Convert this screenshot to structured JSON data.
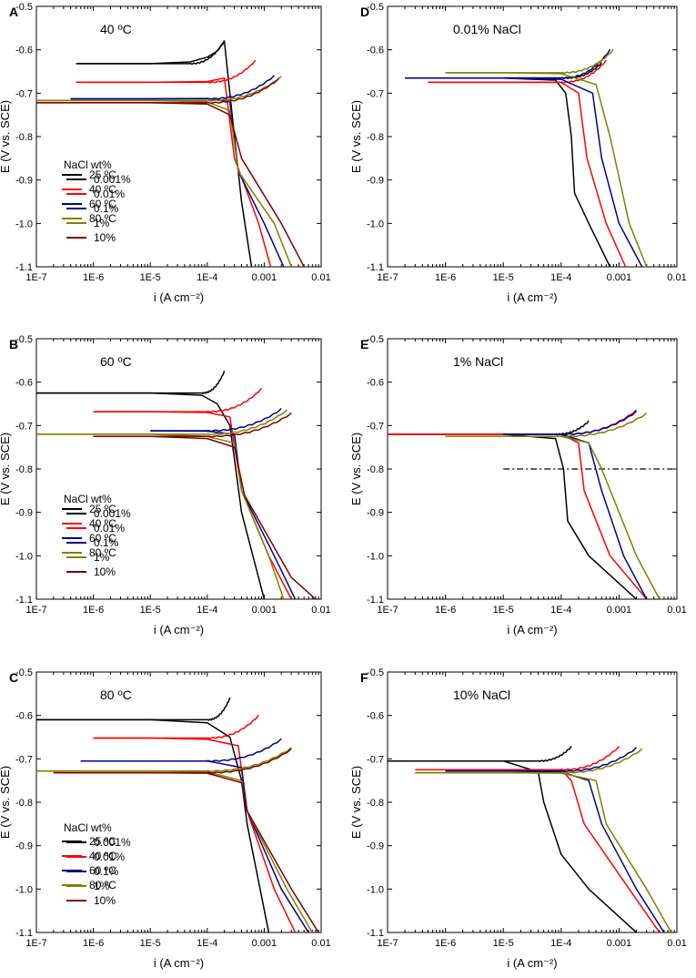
{
  "figure": {
    "x_ticks": [
      "1E-7",
      "1E-6",
      "1E-5",
      "1E-4",
      "0.001",
      "0.01"
    ],
    "y_ticks": [
      "-0.5",
      "-0.6",
      "-0.7",
      "-0.8",
      "-0.9",
      "-1.0",
      "-1.1"
    ],
    "colors": {
      "black": "#000000",
      "red": "#ff0000",
      "blue": "#00008b",
      "olive": "#808000",
      "maroon": "#800000"
    }
  },
  "chart_data": [
    {
      "panel": "A",
      "type": "line",
      "title": "40 ºC",
      "xlabel": "i (A cm⁻²)",
      "ylabel": "E (V vs. SCE)",
      "x_scale": "log",
      "xlim": [
        1e-07,
        0.01
      ],
      "ylim": [
        -1.1,
        -0.5
      ],
      "legend_title": "NaCl wt%",
      "series": [
        {
          "name": "0.001%",
          "color": "#000000",
          "ecorr": -0.632,
          "x": [
            5e-07,
            1e-05,
            5e-05,
            0.0001,
            0.00015,
            0.0002,
            0.0003,
            0.0004,
            0.0006
          ],
          "y": [
            -0.632,
            -0.632,
            -0.628,
            -0.617,
            -0.603,
            -0.58,
            -0.8,
            -0.95,
            -1.1
          ],
          "anodic_end": [
            0.0002,
            -0.58
          ]
        },
        {
          "name": "0.01%",
          "color": "#ff0000",
          "x": [
            5e-07,
            1e-05,
            0.0001,
            0.0002,
            0.0003,
            0.0008,
            0.0013
          ],
          "y": [
            -0.675,
            -0.675,
            -0.673,
            -0.665,
            -0.85,
            -1.0,
            -1.1
          ],
          "anodic_end": [
            0.0007,
            -0.625
          ]
        },
        {
          "name": "0.1%",
          "color": "#00008b",
          "x": [
            4e-07,
            1e-05,
            0.0001,
            0.00025,
            0.00035,
            0.001,
            0.0022
          ],
          "y": [
            -0.713,
            -0.713,
            -0.712,
            -0.72,
            -0.88,
            -1.0,
            -1.1
          ],
          "anodic_end": [
            0.0015,
            -0.66
          ]
        },
        {
          "name": "1%",
          "color": "#808000",
          "x": [
            1e-07,
            1e-05,
            0.0001,
            0.00025,
            0.00035,
            0.0015,
            0.003
          ],
          "y": [
            -0.717,
            -0.717,
            -0.72,
            -0.74,
            -0.88,
            -1.0,
            -1.1
          ],
          "anodic_end": [
            0.002,
            -0.662
          ]
        },
        {
          "name": "10%",
          "color": "#800000",
          "x": [
            1e-07,
            1e-05,
            0.0001,
            0.00025,
            0.0004,
            0.002,
            0.005
          ],
          "y": [
            -0.722,
            -0.722,
            -0.725,
            -0.75,
            -0.85,
            -1.0,
            -1.1
          ],
          "anodic_end": [
            0.0018,
            -0.667
          ]
        }
      ]
    },
    {
      "panel": "B",
      "type": "line",
      "title": "60 ºC",
      "xlabel": "i (A cm⁻²)",
      "ylabel": "E (V vs. SCE)",
      "x_scale": "log",
      "xlim": [
        1e-07,
        0.01
      ],
      "ylim": [
        -1.1,
        -0.5
      ],
      "legend_title": "NaCl wt%",
      "series": [
        {
          "name": "0.001%",
          "color": "#000000",
          "x": [
            1e-07,
            1e-05,
            8e-05,
            0.00015,
            0.00025,
            0.0004,
            0.001
          ],
          "y": [
            -0.625,
            -0.625,
            -0.63,
            -0.65,
            -0.7,
            -0.9,
            -1.1
          ],
          "anodic_end": [
            0.0002,
            -0.575
          ]
        },
        {
          "name": "0.01%",
          "color": "#ff0000",
          "x": [
            1e-06,
            1e-05,
            0.0001,
            0.00025,
            0.0004,
            0.0012,
            0.003
          ],
          "y": [
            -0.668,
            -0.668,
            -0.67,
            -0.68,
            -0.85,
            -1.0,
            -1.1
          ],
          "anodic_end": [
            0.0009,
            -0.615
          ]
        },
        {
          "name": "0.1%",
          "color": "#00008b",
          "x": [
            1e-05,
            0.0001,
            0.0003,
            0.0004,
            0.0015,
            0.0035
          ],
          "y": [
            -0.712,
            -0.713,
            -0.72,
            -0.85,
            -1.0,
            -1.1
          ],
          "anodic_end": [
            0.002,
            -0.662
          ]
        },
        {
          "name": "1%",
          "color": "#808000",
          "x": [
            1e-07,
            1e-05,
            0.0001,
            0.0003,
            0.0004,
            0.0012,
            0.0022
          ],
          "y": [
            -0.72,
            -0.72,
            -0.725,
            -0.74,
            -0.85,
            -1.0,
            -1.1
          ],
          "anodic_end": [
            0.0025,
            -0.665
          ]
        },
        {
          "name": "10%",
          "color": "#800000",
          "x": [
            1e-06,
            1e-05,
            0.0001,
            0.0003,
            0.00045,
            0.003,
            0.008
          ],
          "y": [
            -0.725,
            -0.725,
            -0.73,
            -0.75,
            -0.86,
            -1.05,
            -1.1
          ],
          "anodic_end": [
            0.003,
            -0.672
          ]
        }
      ]
    },
    {
      "panel": "C",
      "type": "line",
      "title": "80 ºC",
      "xlabel": "i (A cm⁻²)",
      "ylabel": "E (V vs. SCE)",
      "x_scale": "log",
      "xlim": [
        1e-07,
        0.01
      ],
      "ylim": [
        -1.1,
        -0.5
      ],
      "legend_title": "NaCl wt%",
      "series": [
        {
          "name": "0.001%",
          "color": "#000000",
          "x": [
            1e-07,
            1e-05,
            0.0001,
            0.00025,
            0.0004,
            0.0005,
            0.0012
          ],
          "y": [
            -0.61,
            -0.61,
            -0.617,
            -0.65,
            -0.75,
            -0.85,
            -1.1
          ],
          "anodic_end": [
            0.00025,
            -0.56
          ]
        },
        {
          "name": "0.01%",
          "color": "#ff0000",
          "x": [
            1e-06,
            1e-05,
            0.0001,
            0.00035,
            0.0005,
            0.0015,
            0.0035
          ],
          "y": [
            -0.652,
            -0.652,
            -0.655,
            -0.67,
            -0.82,
            -1.0,
            -1.1
          ],
          "anodic_end": [
            0.0008,
            -0.6
          ]
        },
        {
          "name": "0.1%",
          "color": "#00008b",
          "x": [
            6e-07,
            1e-05,
            0.0001,
            0.0004,
            0.0005,
            0.002,
            0.006
          ],
          "y": [
            -0.705,
            -0.705,
            -0.705,
            -0.72,
            -0.82,
            -1.0,
            -1.1
          ],
          "anodic_end": [
            0.002,
            -0.655
          ]
        },
        {
          "name": "1%",
          "color": "#808000",
          "x": [
            1e-07,
            1e-05,
            0.0001,
            0.0004,
            0.0005,
            0.0025,
            0.007
          ],
          "y": [
            -0.728,
            -0.728,
            -0.73,
            -0.75,
            -0.82,
            -1.0,
            -1.1
          ],
          "anodic_end": [
            0.003,
            -0.675
          ]
        },
        {
          "name": "10%",
          "color": "#800000",
          "x": [
            2e-07,
            1e-05,
            0.0001,
            0.0004,
            0.0005,
            0.003,
            0.009
          ],
          "y": [
            -0.732,
            -0.732,
            -0.733,
            -0.755,
            -0.82,
            -1.0,
            -1.1
          ],
          "anodic_end": [
            0.003,
            -0.678
          ]
        }
      ]
    },
    {
      "panel": "D",
      "type": "line",
      "title": "0.01% NaCl",
      "xlabel": "i (A cm⁻²)",
      "ylabel": "E (V vs. SCE)",
      "x_scale": "log",
      "xlim": [
        1e-07,
        0.01
      ],
      "ylim": [
        -1.1,
        -0.5
      ],
      "series": [
        {
          "name": "25 ºC",
          "color": "#000000",
          "x": [
            1e-05,
            8e-05,
            0.00012,
            0.00015,
            0.00017,
            0.0003,
            0.0007
          ],
          "y": [
            -0.665,
            -0.67,
            -0.7,
            -0.8,
            -0.93,
            -1.0,
            -1.1
          ],
          "anodic_end": [
            0.0005,
            -0.63
          ]
        },
        {
          "name": "40 ºC",
          "color": "#ff0000",
          "x": [
            5e-07,
            1e-05,
            0.0001,
            0.0002,
            0.00028,
            0.0006,
            0.0013
          ],
          "y": [
            -0.675,
            -0.675,
            -0.675,
            -0.7,
            -0.85,
            -1.0,
            -1.1
          ],
          "anodic_end": [
            0.0006,
            -0.625
          ]
        },
        {
          "name": "60 ºC",
          "color": "#00008b",
          "x": [
            2e-07,
            1e-05,
            0.0001,
            0.00035,
            0.0005,
            0.001,
            0.0025
          ],
          "y": [
            -0.665,
            -0.665,
            -0.668,
            -0.7,
            -0.85,
            -1.0,
            -1.1
          ],
          "anodic_end": [
            0.0007,
            -0.6
          ]
        },
        {
          "name": "80 ºC",
          "color": "#808000",
          "x": [
            1e-06,
            1e-05,
            0.0001,
            0.0004,
            0.0007,
            0.0015,
            0.003
          ],
          "y": [
            -0.653,
            -0.653,
            -0.655,
            -0.68,
            -0.8,
            -1.0,
            -1.1
          ],
          "anodic_end": [
            0.0008,
            -0.6
          ]
        }
      ]
    },
    {
      "panel": "E",
      "type": "line",
      "title": "1% NaCl",
      "xlabel": "i (A cm⁻²)",
      "ylabel": "E (V vs. SCE)",
      "x_scale": "log",
      "xlim": [
        1e-07,
        0.01
      ],
      "ylim": [
        -1.1,
        -0.5
      ],
      "reference_line": {
        "y": -0.8,
        "x_from": 1e-05,
        "x_to": 0.01,
        "style": "dash-dot"
      },
      "series": [
        {
          "name": "25 ºC",
          "color": "#000000",
          "x": [
            1e-07,
            1e-05,
            8e-05,
            0.00011,
            0.00013,
            0.0003,
            0.002
          ],
          "y": [
            -0.72,
            -0.72,
            -0.73,
            -0.8,
            -0.92,
            -1.0,
            -1.1
          ],
          "anodic_end": [
            0.0003,
            -0.69
          ]
        },
        {
          "name": "40 ºC",
          "color": "#ff0000",
          "x": [
            1e-07,
            1e-05,
            0.0001,
            0.0002,
            0.00025,
            0.0007,
            0.003
          ],
          "y": [
            -0.72,
            -0.72,
            -0.72,
            -0.74,
            -0.85,
            -1.0,
            -1.1
          ],
          "anodic_end": [
            0.002,
            -0.665
          ]
        },
        {
          "name": "60 ºC",
          "color": "#00008b",
          "x": [
            1e-05,
            0.0001,
            0.0003,
            0.0005,
            0.0012,
            0.003
          ],
          "y": [
            -0.72,
            -0.72,
            -0.74,
            -0.85,
            -1.0,
            -1.1
          ],
          "anodic_end": [
            0.002,
            -0.668
          ]
        },
        {
          "name": "80 ºC",
          "color": "#808000",
          "x": [
            1e-06,
            1e-05,
            0.0001,
            0.0003,
            0.0005,
            0.002,
            0.005
          ],
          "y": [
            -0.725,
            -0.725,
            -0.725,
            -0.74,
            -0.8,
            -1.0,
            -1.1
          ],
          "anodic_end": [
            0.003,
            -0.672
          ]
        }
      ]
    },
    {
      "panel": "F",
      "type": "line",
      "title": "10% NaCl",
      "xlabel": "i (A cm⁻²)",
      "ylabel": "E (V vs. SCE)",
      "x_scale": "log",
      "xlim": [
        1e-07,
        0.01
      ],
      "ylim": [
        -1.1,
        -0.5
      ],
      "series": [
        {
          "name": "25 ºC",
          "color": "#000000",
          "x": [
            1e-07,
            1e-05,
            4e-05,
            5e-05,
            0.0001,
            0.0003,
            0.002
          ],
          "y": [
            -0.705,
            -0.705,
            -0.73,
            -0.8,
            -0.92,
            -1.0,
            -1.1
          ],
          "anodic_end": [
            0.00015,
            -0.672
          ]
        },
        {
          "name": "40 ºC",
          "color": "#ff0000",
          "x": [
            3e-07,
            1e-05,
            0.0001,
            0.00015,
            0.00025,
            0.0015,
            0.005
          ],
          "y": [
            -0.725,
            -0.725,
            -0.725,
            -0.75,
            -0.85,
            -1.0,
            -1.1
          ],
          "anodic_end": [
            0.001,
            -0.672
          ]
        },
        {
          "name": "60 ºC",
          "color": "#00008b",
          "x": [
            1e-06,
            1e-05,
            0.0001,
            0.0003,
            0.0005,
            0.002,
            0.006
          ],
          "y": [
            -0.728,
            -0.728,
            -0.73,
            -0.75,
            -0.85,
            -1.0,
            -1.1
          ],
          "anodic_end": [
            0.002,
            -0.675
          ]
        },
        {
          "name": "80 ºC",
          "color": "#808000",
          "x": [
            3e-07,
            1e-05,
            0.0001,
            0.0004,
            0.0006,
            0.003,
            0.008
          ],
          "y": [
            -0.732,
            -0.732,
            -0.733,
            -0.75,
            -0.85,
            -1.0,
            -1.1
          ],
          "anodic_end": [
            0.0025,
            -0.678
          ]
        }
      ]
    }
  ]
}
